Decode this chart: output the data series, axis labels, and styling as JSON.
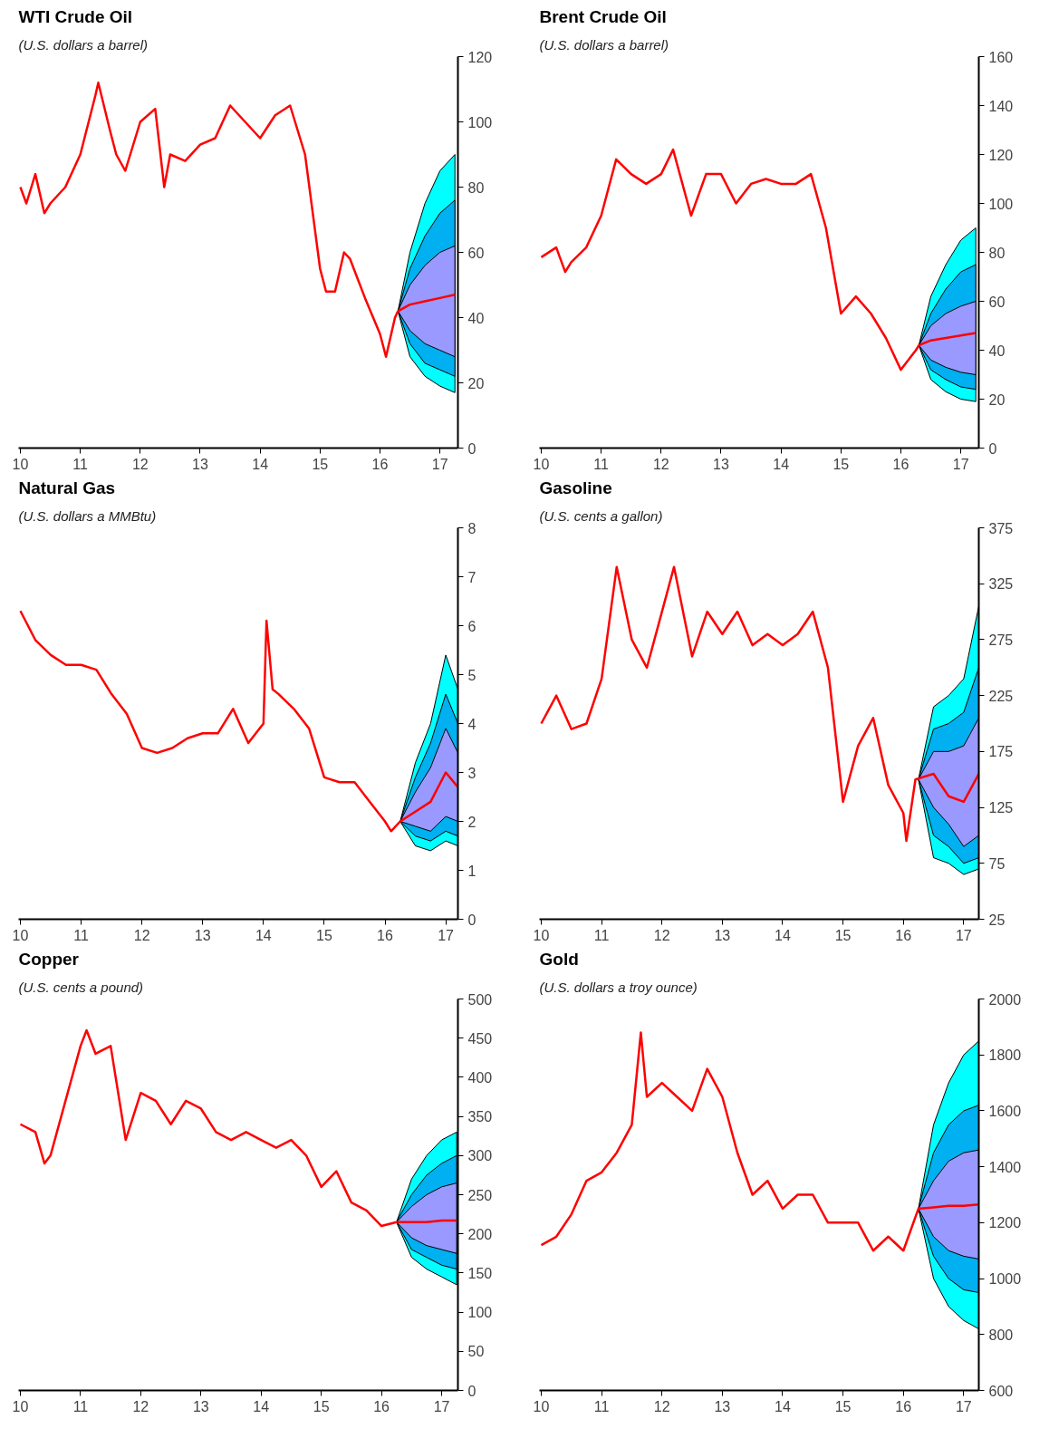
{
  "chart_data": [
    {
      "type": "line",
      "title": "WTI Crude Oil",
      "subtitle": "(U.S. dollars a barrel)",
      "xlim": [
        9.97,
        17.3
      ],
      "xticks": [
        {
          "value": 10,
          "label": "10"
        },
        {
          "value": 11,
          "label": "11"
        },
        {
          "value": 12,
          "label": "12"
        },
        {
          "value": 13,
          "label": "13"
        },
        {
          "value": 14,
          "label": "14"
        },
        {
          "value": 15,
          "label": "15"
        },
        {
          "value": 16,
          "label": "16"
        },
        {
          "value": 17,
          "label": "17"
        }
      ],
      "ylim": [
        0,
        120
      ],
      "yticks": [
        0,
        20,
        40,
        60,
        80,
        100,
        120
      ],
      "grid": false,
      "series": [
        {
          "color": "#00ffff",
          "x": [
            16.3,
            16.5,
            16.75,
            17.0,
            17.25
          ],
          "values": [
            null,
            null,
            null,
            null,
            null
          ],
          "lower": [
            42,
            28,
            22,
            19,
            17
          ],
          "upper": [
            42,
            60,
            75,
            85,
            90
          ]
        },
        {
          "color": "#00b0f0",
          "x": [
            16.3,
            16.5,
            16.75,
            17.0,
            17.25
          ],
          "values": [
            null,
            null,
            null,
            null,
            null
          ],
          "lower": [
            42,
            32,
            26,
            24,
            22
          ],
          "upper": [
            42,
            55,
            65,
            72,
            76
          ]
        },
        {
          "color": "#9999ff",
          "x": [
            16.3,
            16.5,
            16.75,
            17.0,
            17.25
          ],
          "values": [
            null,
            null,
            null,
            null,
            null
          ],
          "lower": [
            42,
            36,
            32,
            30,
            28
          ],
          "upper": [
            42,
            50,
            56,
            60,
            62
          ]
        },
        {
          "color": "#ff0000",
          "x": [
            10,
            10.1,
            10.25,
            10.4,
            10.5,
            10.75,
            11.0,
            11.25,
            11.3,
            11.5,
            11.6,
            11.75,
            12.0,
            12.25,
            12.4,
            12.5,
            12.75,
            13.0,
            13.25,
            13.5,
            13.75,
            14.0,
            14.25,
            14.5,
            14.75,
            15.0,
            15.1,
            15.25,
            15.4,
            15.5,
            15.75,
            16.0,
            16.1,
            16.25,
            16.3,
            16.5,
            16.75,
            17.0,
            17.25
          ],
          "values": [
            80,
            75,
            84,
            72,
            75,
            80,
            90,
            108,
            112,
            97,
            90,
            85,
            100,
            104,
            80,
            90,
            88,
            93,
            95,
            105,
            100,
            95,
            102,
            105,
            90,
            55,
            48,
            48,
            60,
            58,
            46,
            35,
            28,
            40,
            42,
            44,
            45,
            46,
            47
          ]
        }
      ]
    },
    {
      "type": "line",
      "title": "Brent Crude Oil",
      "subtitle": "(U.S. dollars a barrel)",
      "xlim": [
        9.97,
        17.3
      ],
      "xticks": [
        {
          "value": 10,
          "label": "10"
        },
        {
          "value": 11,
          "label": "11"
        },
        {
          "value": 12,
          "label": "12"
        },
        {
          "value": 13,
          "label": "13"
        },
        {
          "value": 14,
          "label": "14"
        },
        {
          "value": 15,
          "label": "15"
        },
        {
          "value": 16,
          "label": "16"
        },
        {
          "value": 17,
          "label": "17"
        }
      ],
      "ylim": [
        0,
        160
      ],
      "yticks": [
        0,
        20,
        40,
        60,
        80,
        100,
        120,
        140,
        160
      ],
      "grid": false,
      "series": [
        {
          "color": "#00ffff",
          "x": [
            16.3,
            16.5,
            16.75,
            17.0,
            17.25
          ],
          "values": [
            null,
            null,
            null,
            null,
            null
          ],
          "lower": [
            42,
            28,
            23,
            20,
            19
          ],
          "upper": [
            42,
            62,
            75,
            85,
            90
          ]
        },
        {
          "color": "#00b0f0",
          "x": [
            16.3,
            16.5,
            16.75,
            17.0,
            17.25
          ],
          "values": [
            null,
            null,
            null,
            null,
            null
          ],
          "lower": [
            42,
            32,
            28,
            25,
            24
          ],
          "upper": [
            42,
            55,
            65,
            72,
            75
          ]
        },
        {
          "color": "#9999ff",
          "x": [
            16.3,
            16.5,
            16.75,
            17.0,
            17.25
          ],
          "values": [
            null,
            null,
            null,
            null,
            null
          ],
          "lower": [
            42,
            36,
            33,
            31,
            30
          ],
          "upper": [
            42,
            50,
            55,
            58,
            60
          ]
        },
        {
          "color": "#ff0000",
          "x": [
            10,
            10.25,
            10.4,
            10.5,
            10.75,
            11.0,
            11.25,
            11.5,
            11.75,
            12.0,
            12.2,
            12.5,
            12.75,
            13.0,
            13.25,
            13.5,
            13.75,
            14.0,
            14.25,
            14.5,
            14.75,
            15.0,
            15.25,
            15.5,
            15.75,
            16.0,
            16.25,
            16.3,
            16.5,
            16.75,
            17.0,
            17.25
          ],
          "values": [
            78,
            82,
            72,
            76,
            82,
            95,
            118,
            112,
            108,
            112,
            122,
            95,
            112,
            112,
            100,
            108,
            110,
            108,
            108,
            112,
            90,
            55,
            62,
            55,
            45,
            32,
            40,
            42,
            44,
            45,
            46,
            47
          ]
        }
      ]
    },
    {
      "type": "line",
      "title": "Natural Gas",
      "subtitle": "(U.S. dollars a MMBtu)",
      "xlim": [
        9.97,
        17.2
      ],
      "xticks": [
        {
          "value": 10,
          "label": "10"
        },
        {
          "value": 11,
          "label": "11"
        },
        {
          "value": 12,
          "label": "12"
        },
        {
          "value": 13,
          "label": "13"
        },
        {
          "value": 14,
          "label": "14"
        },
        {
          "value": 15,
          "label": "15"
        },
        {
          "value": 16,
          "label": "16"
        },
        {
          "value": 17,
          "label": "17"
        }
      ],
      "ylim": [
        0,
        8
      ],
      "yticks": [
        0,
        1,
        2,
        3,
        4,
        5,
        6,
        7,
        8
      ],
      "grid": false,
      "series": [
        {
          "color": "#00ffff",
          "x": [
            16.25,
            16.5,
            16.75,
            17.0,
            17.2
          ],
          "values": [
            null,
            null,
            null,
            null,
            null
          ],
          "lower": [
            2.0,
            1.5,
            1.4,
            1.6,
            1.5
          ],
          "upper": [
            2.0,
            3.2,
            4.0,
            5.4,
            4.7
          ]
        },
        {
          "color": "#00b0f0",
          "x": [
            16.25,
            16.5,
            16.75,
            17.0,
            17.2
          ],
          "values": [
            null,
            null,
            null,
            null,
            null
          ],
          "lower": [
            2.0,
            1.7,
            1.6,
            1.8,
            1.7
          ],
          "upper": [
            2.0,
            2.9,
            3.6,
            4.6,
            4.0
          ]
        },
        {
          "color": "#9999ff",
          "x": [
            16.25,
            16.5,
            16.75,
            17.0,
            17.2
          ],
          "values": [
            null,
            null,
            null,
            null,
            null
          ],
          "lower": [
            2.0,
            1.9,
            1.8,
            2.1,
            2.0
          ],
          "upper": [
            2.0,
            2.6,
            3.1,
            3.9,
            3.4
          ]
        },
        {
          "color": "#ff0000",
          "x": [
            10,
            10.25,
            10.5,
            10.75,
            11.0,
            11.25,
            11.5,
            11.75,
            12.0,
            12.25,
            12.5,
            12.75,
            13.0,
            13.25,
            13.5,
            13.75,
            14.0,
            14.05,
            14.15,
            14.25,
            14.5,
            14.75,
            15.0,
            15.25,
            15.5,
            15.75,
            16.0,
            16.1,
            16.25,
            16.5,
            16.75,
            17.0,
            17.2
          ],
          "values": [
            6.3,
            5.7,
            5.4,
            5.2,
            5.2,
            5.1,
            4.6,
            4.2,
            3.5,
            3.4,
            3.5,
            3.7,
            3.8,
            3.8,
            4.3,
            3.6,
            4.0,
            6.1,
            4.7,
            4.6,
            4.3,
            3.9,
            2.9,
            2.8,
            2.8,
            2.4,
            2.0,
            1.8,
            2.0,
            2.2,
            2.4,
            3.0,
            2.7
          ]
        }
      ]
    },
    {
      "type": "line",
      "title": "Gasoline",
      "subtitle": "(U.S. cents a gallon)",
      "xlim": [
        9.97,
        17.25
      ],
      "xticks": [
        {
          "value": 10,
          "label": "10"
        },
        {
          "value": 11,
          "label": "11"
        },
        {
          "value": 12,
          "label": "12"
        },
        {
          "value": 13,
          "label": "13"
        },
        {
          "value": 14,
          "label": "14"
        },
        {
          "value": 15,
          "label": "15"
        },
        {
          "value": 16,
          "label": "16"
        },
        {
          "value": 17,
          "label": "17"
        }
      ],
      "ylim": [
        25,
        375
      ],
      "yticks": [
        25,
        75,
        125,
        175,
        225,
        275,
        325,
        375
      ],
      "grid": false,
      "series": [
        {
          "color": "#00ffff",
          "x": [
            16.25,
            16.5,
            16.75,
            17.0,
            17.25
          ],
          "values": [
            null,
            null,
            null,
            null,
            null
          ],
          "lower": [
            150,
            80,
            75,
            65,
            70
          ],
          "upper": [
            150,
            215,
            225,
            240,
            305
          ]
        },
        {
          "color": "#00b0f0",
          "x": [
            16.25,
            16.5,
            16.75,
            17.0,
            17.25
          ],
          "values": [
            null,
            null,
            null,
            null,
            null
          ],
          "lower": [
            150,
            100,
            90,
            75,
            80
          ],
          "upper": [
            150,
            195,
            200,
            210,
            250
          ]
        },
        {
          "color": "#9999ff",
          "x": [
            16.25,
            16.5,
            16.75,
            17.0,
            17.25
          ],
          "values": [
            null,
            null,
            null,
            null,
            null
          ],
          "lower": [
            150,
            125,
            110,
            90,
            100
          ],
          "upper": [
            150,
            175,
            175,
            180,
            205
          ]
        },
        {
          "color": "#ff0000",
          "x": [
            10,
            10.25,
            10.5,
            10.75,
            11.0,
            11.25,
            11.5,
            11.75,
            12.0,
            12.2,
            12.5,
            12.75,
            13.0,
            13.25,
            13.5,
            13.75,
            14.0,
            14.25,
            14.5,
            14.75,
            15.0,
            15.25,
            15.5,
            15.75,
            16.0,
            16.05,
            16.2,
            16.5,
            16.75,
            17.0,
            17.25
          ],
          "values": [
            200,
            225,
            195,
            200,
            240,
            340,
            275,
            250,
            300,
            340,
            260,
            300,
            280,
            300,
            270,
            280,
            270,
            280,
            300,
            250,
            130,
            180,
            205,
            145,
            120,
            95,
            150,
            155,
            135,
            130,
            155
          ]
        }
      ]
    },
    {
      "type": "line",
      "title": "Copper",
      "subtitle": "(U.S. cents a pound)",
      "xlim": [
        9.97,
        17.27
      ],
      "xticks": [
        {
          "value": 10,
          "label": "10"
        },
        {
          "value": 11,
          "label": "11"
        },
        {
          "value": 12,
          "label": "12"
        },
        {
          "value": 13,
          "label": "13"
        },
        {
          "value": 14,
          "label": "14"
        },
        {
          "value": 15,
          "label": "15"
        },
        {
          "value": 16,
          "label": "16"
        },
        {
          "value": 17,
          "label": "17"
        }
      ],
      "ylim": [
        0,
        500
      ],
      "yticks": [
        0,
        50,
        100,
        150,
        200,
        250,
        300,
        350,
        400,
        450,
        500
      ],
      "grid": false,
      "series": [
        {
          "color": "#00ffff",
          "x": [
            16.25,
            16.5,
            16.75,
            17.0,
            17.25
          ],
          "values": [
            null,
            null,
            null,
            null,
            null
          ],
          "lower": [
            215,
            170,
            155,
            145,
            135
          ],
          "upper": [
            215,
            270,
            300,
            320,
            330
          ]
        },
        {
          "color": "#00b0f0",
          "x": [
            16.25,
            16.5,
            16.75,
            17.0,
            17.25
          ],
          "values": [
            null,
            null,
            null,
            null,
            null
          ],
          "lower": [
            215,
            180,
            170,
            160,
            155
          ],
          "upper": [
            215,
            250,
            275,
            290,
            300
          ]
        },
        {
          "color": "#9999ff",
          "x": [
            16.25,
            16.5,
            16.75,
            17.0,
            17.25
          ],
          "values": [
            null,
            null,
            null,
            null,
            null
          ],
          "lower": [
            215,
            195,
            185,
            180,
            175
          ],
          "upper": [
            215,
            235,
            250,
            260,
            265
          ]
        },
        {
          "color": "#ff0000",
          "x": [
            10,
            10.25,
            10.4,
            10.5,
            10.75,
            11.0,
            11.1,
            11.25,
            11.5,
            11.75,
            12.0,
            12.25,
            12.5,
            12.75,
            13.0,
            13.25,
            13.5,
            13.75,
            14.0,
            14.25,
            14.5,
            14.75,
            15.0,
            15.25,
            15.5,
            15.75,
            16.0,
            16.25,
            16.5,
            16.75,
            17.0,
            17.25
          ],
          "values": [
            340,
            330,
            290,
            300,
            370,
            440,
            460,
            430,
            440,
            320,
            380,
            370,
            340,
            370,
            360,
            330,
            320,
            330,
            320,
            310,
            320,
            300,
            260,
            280,
            240,
            230,
            210,
            215,
            215,
            215,
            217,
            217
          ]
        }
      ]
    },
    {
      "type": "line",
      "title": "Gold",
      "subtitle": "(U.S. dollars a troy ounce)",
      "xlim": [
        9.97,
        17.25
      ],
      "xticks": [
        {
          "value": 10,
          "label": "10"
        },
        {
          "value": 11,
          "label": "11"
        },
        {
          "value": 12,
          "label": "12"
        },
        {
          "value": 13,
          "label": "13"
        },
        {
          "value": 14,
          "label": "14"
        },
        {
          "value": 15,
          "label": "15"
        },
        {
          "value": 16,
          "label": "16"
        },
        {
          "value": 17,
          "label": "17"
        }
      ],
      "ylim": [
        600,
        2000
      ],
      "yticks": [
        600,
        800,
        1000,
        1200,
        1400,
        1600,
        1800,
        2000
      ],
      "grid": false,
      "series": [
        {
          "color": "#00ffff",
          "x": [
            16.25,
            16.5,
            16.75,
            17.0,
            17.25
          ],
          "values": [
            null,
            null,
            null,
            null,
            null
          ],
          "lower": [
            1250,
            1000,
            900,
            850,
            820
          ],
          "upper": [
            1250,
            1550,
            1700,
            1800,
            1850
          ]
        },
        {
          "color": "#00b0f0",
          "x": [
            16.25,
            16.5,
            16.75,
            17.0,
            17.25
          ],
          "values": [
            null,
            null,
            null,
            null,
            null
          ],
          "lower": [
            1250,
            1080,
            1000,
            960,
            950
          ],
          "upper": [
            1250,
            1450,
            1550,
            1600,
            1620
          ]
        },
        {
          "color": "#9999ff",
          "x": [
            16.25,
            16.5,
            16.75,
            17.0,
            17.25
          ],
          "values": [
            null,
            null,
            null,
            null,
            null
          ],
          "lower": [
            1250,
            1150,
            1100,
            1080,
            1070
          ],
          "upper": [
            1250,
            1350,
            1420,
            1450,
            1460
          ]
        },
        {
          "color": "#ff0000",
          "x": [
            10,
            10.25,
            10.5,
            10.75,
            11.0,
            11.25,
            11.5,
            11.65,
            11.75,
            12.0,
            12.25,
            12.5,
            12.75,
            13.0,
            13.25,
            13.5,
            13.75,
            14.0,
            14.25,
            14.5,
            14.75,
            15.0,
            15.25,
            15.5,
            15.75,
            16.0,
            16.25,
            16.5,
            16.75,
            17.0,
            17.25
          ],
          "values": [
            1120,
            1150,
            1230,
            1350,
            1380,
            1450,
            1550,
            1880,
            1650,
            1700,
            1650,
            1600,
            1750,
            1650,
            1450,
            1300,
            1350,
            1250,
            1300,
            1300,
            1200,
            1200,
            1200,
            1100,
            1150,
            1100,
            1250,
            1255,
            1260,
            1260,
            1265
          ]
        }
      ]
    }
  ]
}
